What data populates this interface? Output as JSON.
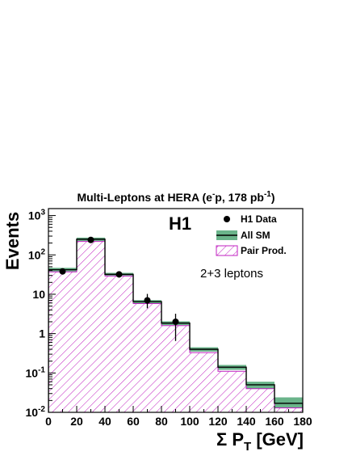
{
  "chart_data": {
    "type": "bar",
    "title": "Multi-Leptons at HERA (e⁻p, 178 pb⁻¹)",
    "title_parts": {
      "main": "Multi-Leptons at HERA (e",
      "sup1": "-",
      "mid": "p, 178 pb",
      "sup2": "-1",
      "end": ")"
    },
    "experiment_label": "H1",
    "selection_label": "2+3 leptons",
    "xlabel": "Σ P_T [GeV]",
    "xlabel_parts": {
      "sigma": "Σ",
      "p": "P",
      "sub": "T",
      "unit": "[GeV]"
    },
    "ylabel": "Events",
    "xlim": [
      0,
      180
    ],
    "ylim": [
      0.01,
      1500
    ],
    "y_scale": "log",
    "x_ticks": [
      "0",
      "20",
      "40",
      "60",
      "80",
      "100",
      "120",
      "140",
      "160",
      "180"
    ],
    "y_ticks": [
      {
        "base": "10",
        "exp": "-2",
        "value": 0.01
      },
      {
        "base": "10",
        "exp": "-1",
        "value": 0.1
      },
      {
        "base": "1",
        "exp": "",
        "value": 1
      },
      {
        "base": "10",
        "exp": "",
        "value": 10
      },
      {
        "base": "10",
        "exp": "2",
        "value": 100
      },
      {
        "base": "10",
        "exp": "3",
        "value": 1000
      }
    ],
    "bin_edges": [
      0,
      20,
      40,
      60,
      80,
      100,
      120,
      140,
      160,
      180
    ],
    "series": [
      {
        "name": "H1 Data",
        "kind": "points",
        "x": [
          10,
          30,
          50,
          70,
          90
        ],
        "y": [
          38,
          240,
          32,
          7,
          2
        ],
        "err_low": [
          6,
          15,
          5.5,
          2.6,
          1.35
        ],
        "err_high": [
          6.5,
          16,
          6,
          3.2,
          1.2
        ]
      },
      {
        "name": "All SM",
        "kind": "histogram-with-band",
        "values": [
          42,
          250,
          32,
          6.5,
          1.85,
          0.4,
          0.14,
          0.05,
          0.017
        ],
        "band_low": [
          38,
          225,
          29,
          5.9,
          1.65,
          0.35,
          0.12,
          0.04,
          0.013
        ],
        "band_high": [
          47,
          275,
          35,
          7.1,
          2.05,
          0.45,
          0.16,
          0.06,
          0.024
        ],
        "color": "#2e8b57"
      },
      {
        "name": "Pair Prod.",
        "kind": "hatched-histogram",
        "values": [
          37,
          220,
          29,
          5.8,
          1.6,
          0.33,
          0.11,
          0.04,
          0.013
        ],
        "color": "#c020c0"
      }
    ],
    "legend_position": "top-right",
    "grid": false
  }
}
